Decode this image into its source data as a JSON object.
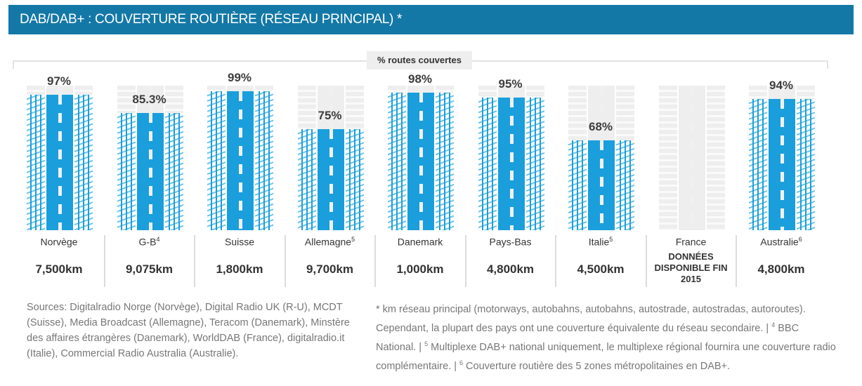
{
  "header": {
    "title": "DAB/DAB+ : COUVERTURE ROUTIÈRE (RÉSEAU PRINCIPAL) *"
  },
  "colors": {
    "header": "#1478a7",
    "road": "#1a9fdc",
    "road_bg": "#eeeeee"
  },
  "chart_data": {
    "type": "bar",
    "title": "",
    "ylabel": "% routes couvertes",
    "categories": [
      "Norvège",
      "G-B",
      "Suisse",
      "Allemagne",
      "Danemark",
      "Pays-Bas",
      "Italie",
      "France",
      "Australie"
    ],
    "footnote_marks": [
      "",
      "4",
      "",
      "5",
      "",
      "",
      "5",
      "",
      "6"
    ],
    "values": [
      97,
      85.3,
      99,
      75,
      98,
      95,
      68,
      null,
      94
    ],
    "value_labels": [
      "97%",
      "85.3%",
      "99%",
      "75%",
      "98%",
      "95%",
      "68%",
      "",
      "94%"
    ],
    "network_km": [
      "7,500km",
      "9,075km",
      "1,800km",
      "9,700km",
      "1,000km",
      "4,800km",
      "4,500km",
      "",
      "4,800km"
    ],
    "notes": [
      "",
      "",
      "",
      "",
      "",
      "",
      "",
      "DONNÉES DISPONIBLE FIN 2015",
      ""
    ],
    "ylim": [
      0,
      100
    ]
  },
  "sources": "Sources: Digitalradio Norge (Norvège), Digital Radio UK (R-U), MCDT (Suisse), Media Broadcast (Allemagne), Teracom (Danemark), Minstère des affaires étrangères (Danemark), WorldDAB (France), digitalradio.it (Italie), Commercial Radio Australia (Australie).",
  "footnote": {
    "p1": "* km réseau principal (motorways, autobahns, autobahns, autostrade, autostradas, autoroutes).  Cependant, la plupart des pays ont une couverture équivalente du réseau secondaire.  | ",
    "m4": "4",
    "p2": " BBC National.  | ",
    "m5": "5",
    "p3": " Multiplexe DAB+ national uniquement, le multiplexe régional fournira une couverture radio complémentaire.  | ",
    "m6": "6",
    "p4": " Couverture routière des 5 zones métropolitaines en DAB+."
  }
}
